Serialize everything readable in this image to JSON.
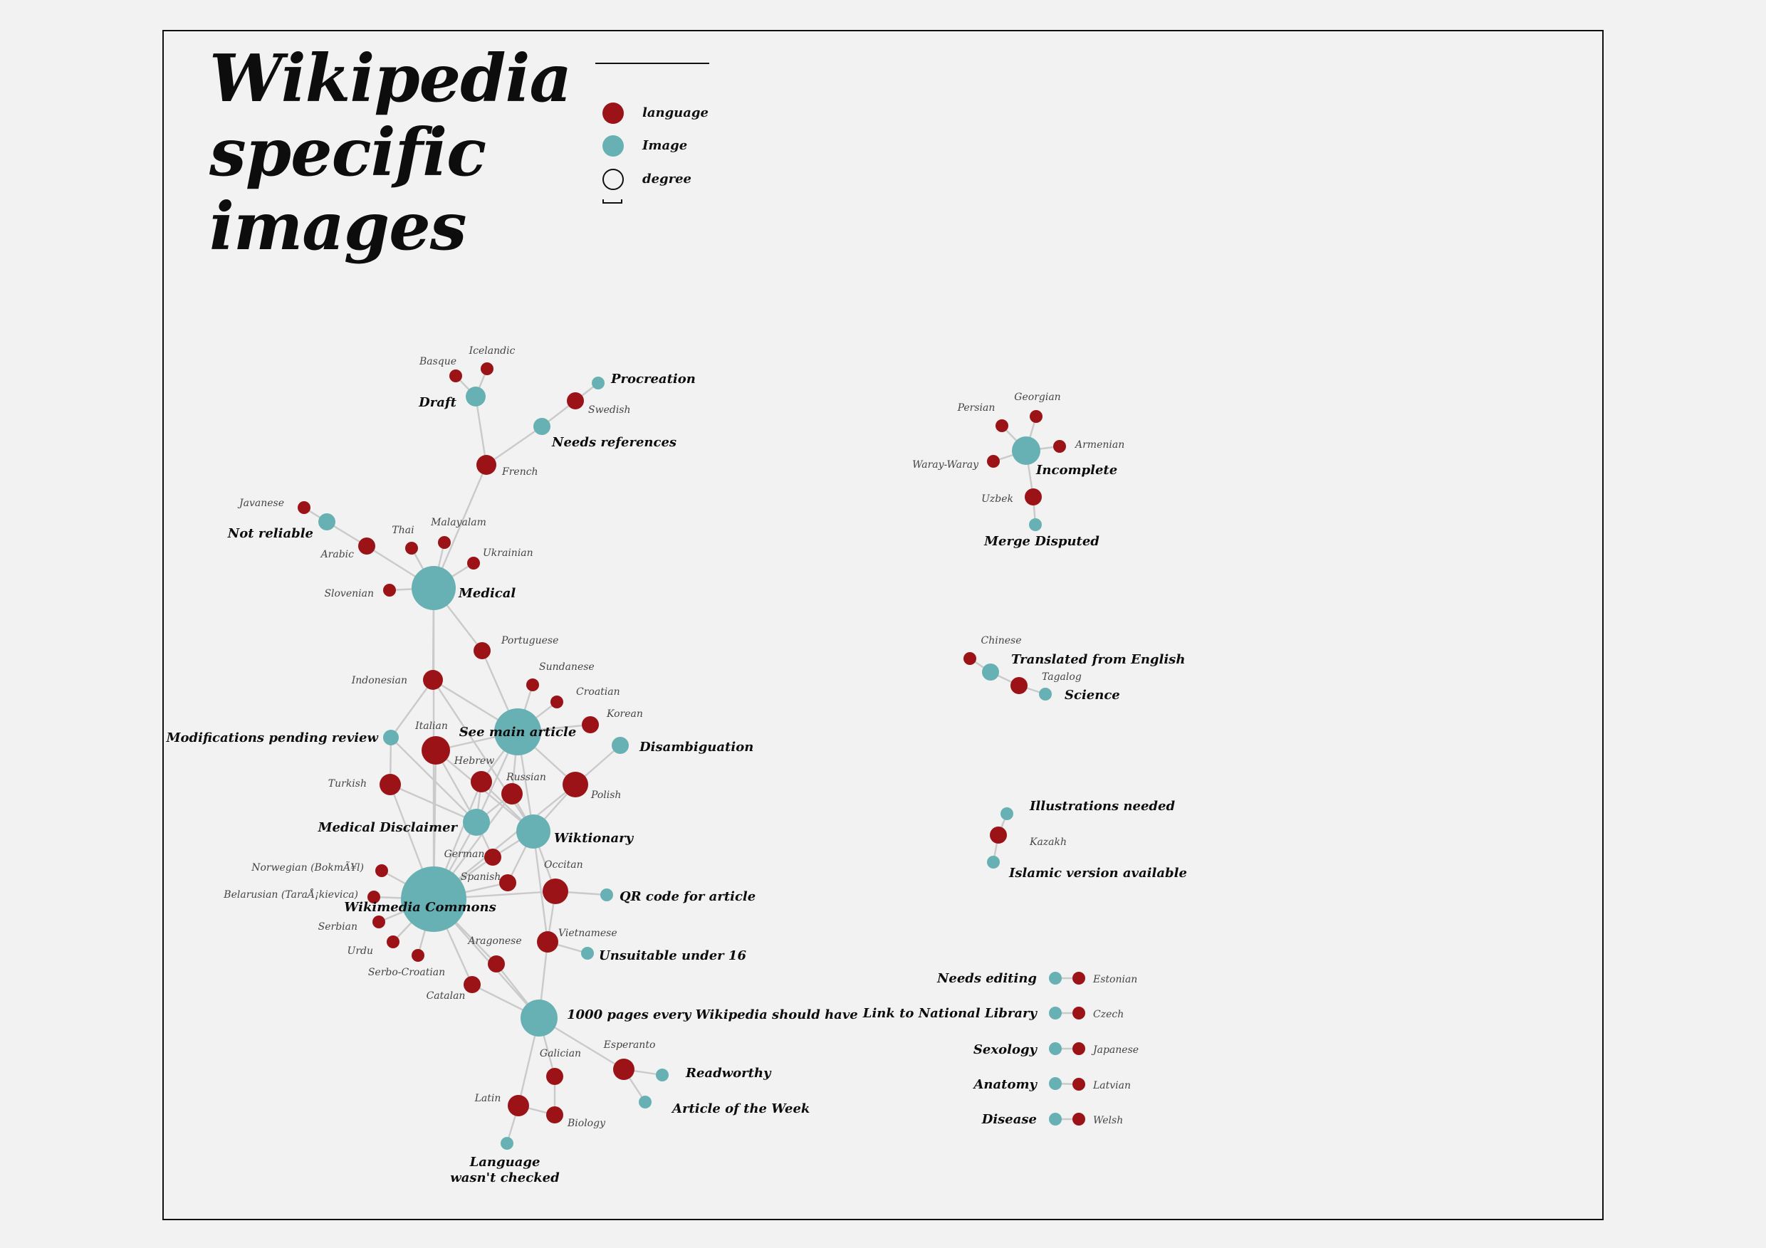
{
  "title": [
    "Wikipedia",
    "specific",
    "images"
  ],
  "colors": {
    "language": "#9b1317",
    "image": "#67b1b4"
  },
  "legend": {
    "items": [
      {
        "label": "language",
        "swatch": "language-dot-icon"
      },
      {
        "label": "Image",
        "swatch": "image-dot-icon"
      },
      {
        "label": "degree",
        "swatch": "degree-circle-icon"
      }
    ]
  },
  "network": {
    "nodes": [
      {
        "id": "medical",
        "label": "Medical",
        "type": "image"
      },
      {
        "id": "commons",
        "label": "Wikimedia Commons",
        "type": "image"
      },
      {
        "id": "seemain",
        "label": "See main article",
        "type": "image"
      },
      {
        "id": "wiktionary",
        "label": "Wiktionary",
        "type": "image"
      },
      {
        "id": "meddisc",
        "label": "Medical Disclaimer",
        "type": "image"
      },
      {
        "id": "pages1000",
        "label": "1000 pages every Wikipedia should have",
        "type": "image"
      },
      {
        "id": "draft",
        "label": "Draft",
        "type": "image"
      },
      {
        "id": "procreation",
        "label": "Procreation",
        "type": "image"
      },
      {
        "id": "needsref",
        "label": "Needs references",
        "type": "image"
      },
      {
        "id": "notreliable",
        "label": "Not reliable",
        "type": "image"
      },
      {
        "id": "modpend",
        "label": "Modifications pending review",
        "type": "image"
      },
      {
        "id": "disamb",
        "label": "Disambiguation",
        "type": "image"
      },
      {
        "id": "qrcode",
        "label": "QR code for article",
        "type": "image"
      },
      {
        "id": "unsuit16",
        "label": "Unsuitable under 16",
        "type": "image"
      },
      {
        "id": "readworthy",
        "label": "Readworthy",
        "type": "image"
      },
      {
        "id": "articleweek",
        "label": "Article of the Week",
        "type": "image"
      },
      {
        "id": "langchecked",
        "label": "Language wasn't checked",
        "type": "image"
      },
      {
        "id": "french",
        "label": "French",
        "type": "language"
      },
      {
        "id": "basque",
        "label": "Basque",
        "type": "language"
      },
      {
        "id": "icelandic",
        "label": "Icelandic",
        "type": "language"
      },
      {
        "id": "swedish",
        "label": "Swedish",
        "type": "language"
      },
      {
        "id": "javanese",
        "label": "Javanese",
        "type": "language"
      },
      {
        "id": "arabic",
        "label": "Arabic",
        "type": "language"
      },
      {
        "id": "thai",
        "label": "Thai",
        "type": "language"
      },
      {
        "id": "malayalam",
        "label": "Malayalam",
        "type": "language"
      },
      {
        "id": "ukrainian",
        "label": "Ukrainian",
        "type": "language"
      },
      {
        "id": "slovenian",
        "label": "Slovenian",
        "type": "language"
      },
      {
        "id": "portuguese",
        "label": "Portuguese",
        "type": "language"
      },
      {
        "id": "indonesian",
        "label": "Indonesian",
        "type": "language"
      },
      {
        "id": "sundanese",
        "label": "Sundanese",
        "type": "language"
      },
      {
        "id": "croatian",
        "label": "Croatian",
        "type": "language"
      },
      {
        "id": "korean",
        "label": "Korean",
        "type": "language"
      },
      {
        "id": "italian",
        "label": "Italian",
        "type": "language"
      },
      {
        "id": "hebrew",
        "label": "Hebrew",
        "type": "language"
      },
      {
        "id": "russian",
        "label": "Russian",
        "type": "language"
      },
      {
        "id": "polish",
        "label": "Polish",
        "type": "language"
      },
      {
        "id": "turkish",
        "label": "Turkish",
        "type": "language"
      },
      {
        "id": "german",
        "label": "German",
        "type": "language"
      },
      {
        "id": "spanish",
        "label": "Spanish",
        "type": "language"
      },
      {
        "id": "occitan",
        "label": "Occitan",
        "type": "language"
      },
      {
        "id": "norwegian",
        "label": "Norwegian (BokmÃ¥l)",
        "type": "language"
      },
      {
        "id": "belarusian",
        "label": "Belarusian (TaraÅ¡kievica)",
        "type": "language"
      },
      {
        "id": "serbian",
        "label": "Serbian",
        "type": "language"
      },
      {
        "id": "urdu",
        "label": "Urdu",
        "type": "language"
      },
      {
        "id": "serbocroatian",
        "label": "Serbo-Croatian",
        "type": "language"
      },
      {
        "id": "aragonese",
        "label": "Aragonese",
        "type": "language"
      },
      {
        "id": "vietnamese",
        "label": "Vietnamese",
        "type": "language"
      },
      {
        "id": "catalan",
        "label": "Catalan",
        "type": "language"
      },
      {
        "id": "galician",
        "label": "Galician",
        "type": "language"
      },
      {
        "id": "esperanto",
        "label": "Esperanto",
        "type": "language"
      },
      {
        "id": "latin",
        "label": "Latin",
        "type": "language"
      },
      {
        "id": "biology",
        "label": "Biology",
        "type": "language"
      },
      {
        "id": "incomplete",
        "label": "Incomplete",
        "type": "image"
      },
      {
        "id": "mergedisp",
        "label": "Merge Disputed",
        "type": "image"
      },
      {
        "id": "persian",
        "label": "Persian",
        "type": "language"
      },
      {
        "id": "georgian",
        "label": "Georgian",
        "type": "language"
      },
      {
        "id": "armenian",
        "label": "Armenian",
        "type": "language"
      },
      {
        "id": "waray",
        "label": "Waray-Waray",
        "type": "language"
      },
      {
        "id": "uzbek",
        "label": "Uzbek",
        "type": "language"
      },
      {
        "id": "translated",
        "label": "Translated from English",
        "type": "image"
      },
      {
        "id": "science",
        "label": "Science",
        "type": "image"
      },
      {
        "id": "chinese",
        "label": "Chinese",
        "type": "language"
      },
      {
        "id": "tagalog",
        "label": "Tagalog",
        "type": "language"
      },
      {
        "id": "illustrations",
        "label": "Illustrations needed",
        "type": "image"
      },
      {
        "id": "islamic",
        "label": "Islamic version available",
        "type": "image"
      },
      {
        "id": "kazakh",
        "label": "Kazakh",
        "type": "language"
      },
      {
        "id": "needsediting",
        "label": "Needs editing",
        "type": "image"
      },
      {
        "id": "estonian",
        "label": "Estonian",
        "type": "language"
      },
      {
        "id": "natlib",
        "label": "Link to National Library",
        "type": "image"
      },
      {
        "id": "czech",
        "label": "Czech",
        "type": "language"
      },
      {
        "id": "sexology",
        "label": "Sexology",
        "type": "image"
      },
      {
        "id": "japanese",
        "label": "Japanese",
        "type": "language"
      },
      {
        "id": "anatomy",
        "label": "Anatomy",
        "type": "image"
      },
      {
        "id": "latvian",
        "label": "Latvian",
        "type": "language"
      },
      {
        "id": "disease",
        "label": "Disease",
        "type": "image"
      },
      {
        "id": "welsh",
        "label": "Welsh",
        "type": "language"
      }
    ],
    "edges": [
      [
        "basque",
        "draft"
      ],
      [
        "icelandic",
        "draft"
      ],
      [
        "draft",
        "french"
      ],
      [
        "procreation",
        "swedish"
      ],
      [
        "swedish",
        "needsref"
      ],
      [
        "needsref",
        "french"
      ],
      [
        "french",
        "medical"
      ],
      [
        "javanese",
        "notreliable"
      ],
      [
        "notreliable",
        "arabic"
      ],
      [
        "arabic",
        "medical"
      ],
      [
        "thai",
        "medical"
      ],
      [
        "malayalam",
        "medical"
      ],
      [
        "ukrainian",
        "medical"
      ],
      [
        "slovenian",
        "medical"
      ],
      [
        "medical",
        "portuguese"
      ],
      [
        "medical",
        "commons"
      ],
      [
        "medical",
        "indonesian"
      ],
      [
        "portuguese",
        "seemain"
      ],
      [
        "indonesian",
        "modpend"
      ],
      [
        "indonesian",
        "seemain"
      ],
      [
        "indonesian",
        "wiktionary"
      ],
      [
        "sundanese",
        "seemain"
      ],
      [
        "croatian",
        "seemain"
      ],
      [
        "korean",
        "seemain"
      ],
      [
        "seemain",
        "italian"
      ],
      [
        "seemain",
        "hebrew"
      ],
      [
        "seemain",
        "russian"
      ],
      [
        "seemain",
        "polish"
      ],
      [
        "seemain",
        "wiktionary"
      ],
      [
        "seemain",
        "meddisc"
      ],
      [
        "disamb",
        "polish"
      ],
      [
        "modpend",
        "turkish"
      ],
      [
        "modpend",
        "meddisc"
      ],
      [
        "italian",
        "meddisc"
      ],
      [
        "italian",
        "wiktionary"
      ],
      [
        "italian",
        "commons"
      ],
      [
        "hebrew",
        "meddisc"
      ],
      [
        "hebrew",
        "wiktionary"
      ],
      [
        "hebrew",
        "commons"
      ],
      [
        "russian",
        "wiktionary"
      ],
      [
        "russian",
        "meddisc"
      ],
      [
        "russian",
        "commons"
      ],
      [
        "polish",
        "wiktionary"
      ],
      [
        "polish",
        "commons"
      ],
      [
        "turkish",
        "commons"
      ],
      [
        "turkish",
        "meddisc"
      ],
      [
        "meddisc",
        "german"
      ],
      [
        "meddisc",
        "commons"
      ],
      [
        "wiktionary",
        "german"
      ],
      [
        "wiktionary",
        "spanish"
      ],
      [
        "wiktionary",
        "occitan"
      ],
      [
        "wiktionary",
        "vietnamese"
      ],
      [
        "german",
        "commons"
      ],
      [
        "spanish",
        "commons"
      ],
      [
        "commons",
        "occitan"
      ],
      [
        "commons",
        "norwegian"
      ],
      [
        "commons",
        "belarusian"
      ],
      [
        "commons",
        "serbian"
      ],
      [
        "commons",
        "urdu"
      ],
      [
        "commons",
        "serbocroatian"
      ],
      [
        "commons",
        "aragonese"
      ],
      [
        "commons",
        "catalan"
      ],
      [
        "commons",
        "pages1000"
      ],
      [
        "occitan",
        "qrcode"
      ],
      [
        "occitan",
        "vietnamese"
      ],
      [
        "vietnamese",
        "unsuit16"
      ],
      [
        "vietnamese",
        "pages1000"
      ],
      [
        "aragonese",
        "pages1000"
      ],
      [
        "catalan",
        "pages1000"
      ],
      [
        "pages1000",
        "galician"
      ],
      [
        "pages1000",
        "esperanto"
      ],
      [
        "pages1000",
        "latin"
      ],
      [
        "esperanto",
        "readworthy"
      ],
      [
        "esperanto",
        "articleweek"
      ],
      [
        "galician",
        "biology"
      ],
      [
        "latin",
        "biology"
      ],
      [
        "latin",
        "langchecked"
      ],
      [
        "persian",
        "incomplete"
      ],
      [
        "georgian",
        "incomplete"
      ],
      [
        "armenian",
        "incomplete"
      ],
      [
        "waray",
        "incomplete"
      ],
      [
        "incomplete",
        "uzbek"
      ],
      [
        "uzbek",
        "mergedisp"
      ],
      [
        "chinese",
        "translated"
      ],
      [
        "translated",
        "tagalog"
      ],
      [
        "tagalog",
        "science"
      ],
      [
        "illustrations",
        "kazakh"
      ],
      [
        "kazakh",
        "islamic"
      ],
      [
        "needsediting",
        "estonian"
      ],
      [
        "natlib",
        "czech"
      ],
      [
        "sexology",
        "japanese"
      ],
      [
        "anatomy",
        "latvian"
      ],
      [
        "disease",
        "welsh"
      ]
    ]
  }
}
